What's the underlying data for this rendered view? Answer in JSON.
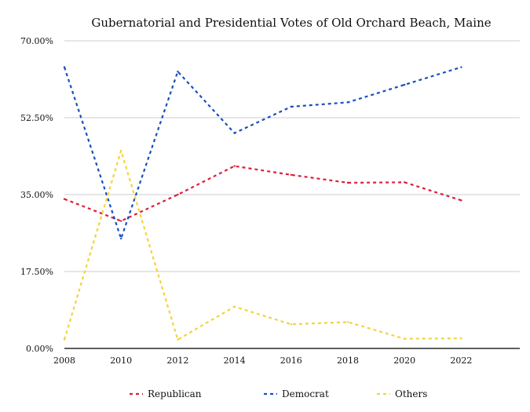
{
  "chart_data": {
    "type": "line",
    "title": "Gubernatorial and Presidential Votes of Old Orchard Beach, Maine",
    "xlabel": "",
    "ylabel": "",
    "x": [
      "2008",
      "2010",
      "2012",
      "2014",
      "2016",
      "2018",
      "2020",
      "2022"
    ],
    "y_ticks": [
      "0.00%",
      "17.50%",
      "35.00%",
      "52.50%",
      "70.00%"
    ],
    "ylim": [
      0,
      70
    ],
    "grid": true,
    "legend_position": "bottom",
    "series": [
      {
        "name": "Republican",
        "color": "#dc1f3c",
        "line_style": "dashed",
        "values": [
          34.0,
          29.0,
          35.0,
          41.5,
          39.5,
          37.7,
          37.8,
          33.7
        ]
      },
      {
        "name": "Democrat",
        "color": "#1a4fbf",
        "line_style": "dashed",
        "values": [
          64.0,
          25.0,
          63.0,
          49.0,
          55.0,
          56.0,
          60.0,
          64.0
        ]
      },
      {
        "name": "Others",
        "color": "#f2d43a",
        "line_style": "dashed",
        "values": [
          2.0,
          45.0,
          2.0,
          9.5,
          5.5,
          6.0,
          2.2,
          2.3
        ]
      }
    ]
  }
}
